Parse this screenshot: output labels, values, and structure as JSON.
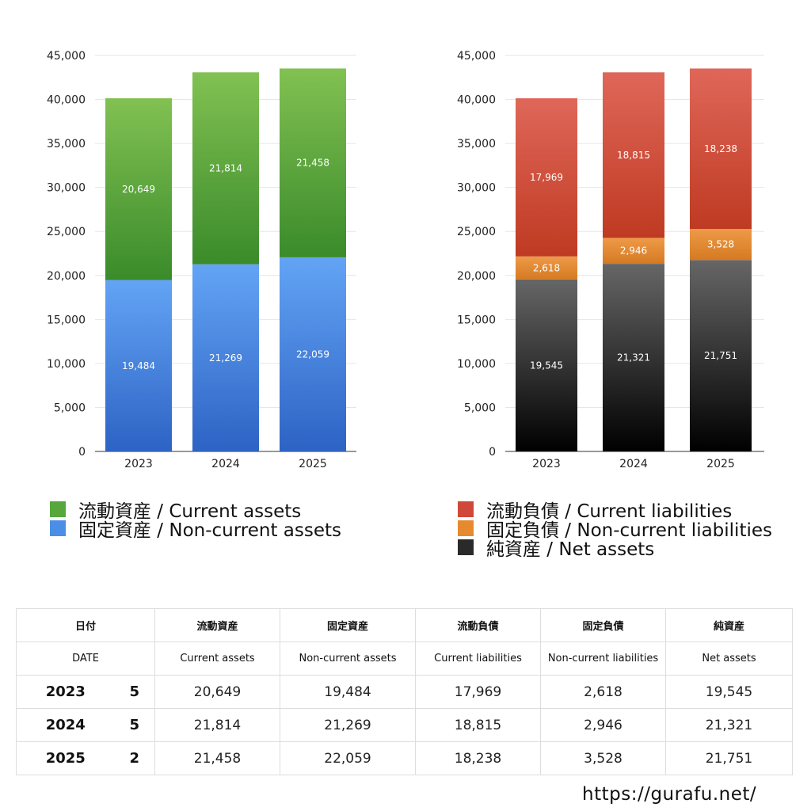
{
  "chart_data": [
    {
      "type": "bar",
      "stacked": true,
      "categories": [
        "2023",
        "2024",
        "2025"
      ],
      "ylim": [
        0,
        45000
      ],
      "yticks": [
        0,
        5000,
        10000,
        15000,
        20000,
        25000,
        30000,
        35000,
        40000,
        45000
      ],
      "grid": true,
      "series": [
        {
          "name": "固定資産 / Non-current assets",
          "values": [
            19484,
            21269,
            22059
          ],
          "color_top": "#63a4f5",
          "color_bottom": "#2d63c4"
        },
        {
          "name": "流動資産 / Current assets",
          "values": [
            20649,
            21814,
            21458
          ],
          "color_top": "#82c152",
          "color_bottom": "#3a8b2b"
        }
      ],
      "legend": [
        "流動資産 / Current assets",
        "固定資産 / Non-current assets"
      ],
      "legend_colors": [
        "#56a83c",
        "#4a8ee6"
      ],
      "legend_position": "bottom"
    },
    {
      "type": "bar",
      "stacked": true,
      "categories": [
        "2023",
        "2024",
        "2025"
      ],
      "ylim": [
        0,
        45000
      ],
      "yticks": [
        0,
        5000,
        10000,
        15000,
        20000,
        25000,
        30000,
        35000,
        40000,
        45000
      ],
      "grid": true,
      "series": [
        {
          "name": "純資産 / Net assets",
          "values": [
            19545,
            21321,
            21751
          ],
          "color_top": "#666666",
          "color_bottom": "#000000"
        },
        {
          "name": "固定負債 / Non-current liabilities",
          "values": [
            2618,
            2946,
            3528
          ],
          "color_top": "#ee9a48",
          "color_bottom": "#d57a22"
        },
        {
          "name": "流動負債 / Current liabilities",
          "values": [
            17969,
            18815,
            18238
          ],
          "color_top": "#df6759",
          "color_bottom": "#bf3a22"
        }
      ],
      "legend": [
        "流動負債 / Current liabilities",
        "固定負債 / Non-current liabilities",
        "純資産 / Net assets"
      ],
      "legend_colors": [
        "#d0483a",
        "#e6892f",
        "#2a2a2a"
      ],
      "legend_position": "bottom"
    }
  ],
  "table": {
    "header1": [
      "日付",
      "流動資産",
      "固定資産",
      "流動負債",
      "固定負債",
      "純資産"
    ],
    "header2": [
      "DATE",
      "Current assets",
      "Non-current assets",
      "Current liabilities",
      "Non-current liabilities",
      "Net assets"
    ],
    "rows": [
      {
        "year": "2023",
        "count": "5",
        "values": [
          "20,649",
          "19,484",
          "17,969",
          "2,618",
          "19,545"
        ]
      },
      {
        "year": "2024",
        "count": "5",
        "values": [
          "21,814",
          "21,269",
          "18,815",
          "2,946",
          "21,321"
        ]
      },
      {
        "year": "2025",
        "count": "2",
        "values": [
          "21,458",
          "22,059",
          "18,238",
          "3,528",
          "21,751"
        ]
      }
    ]
  },
  "source": "https://gurafu.net/"
}
